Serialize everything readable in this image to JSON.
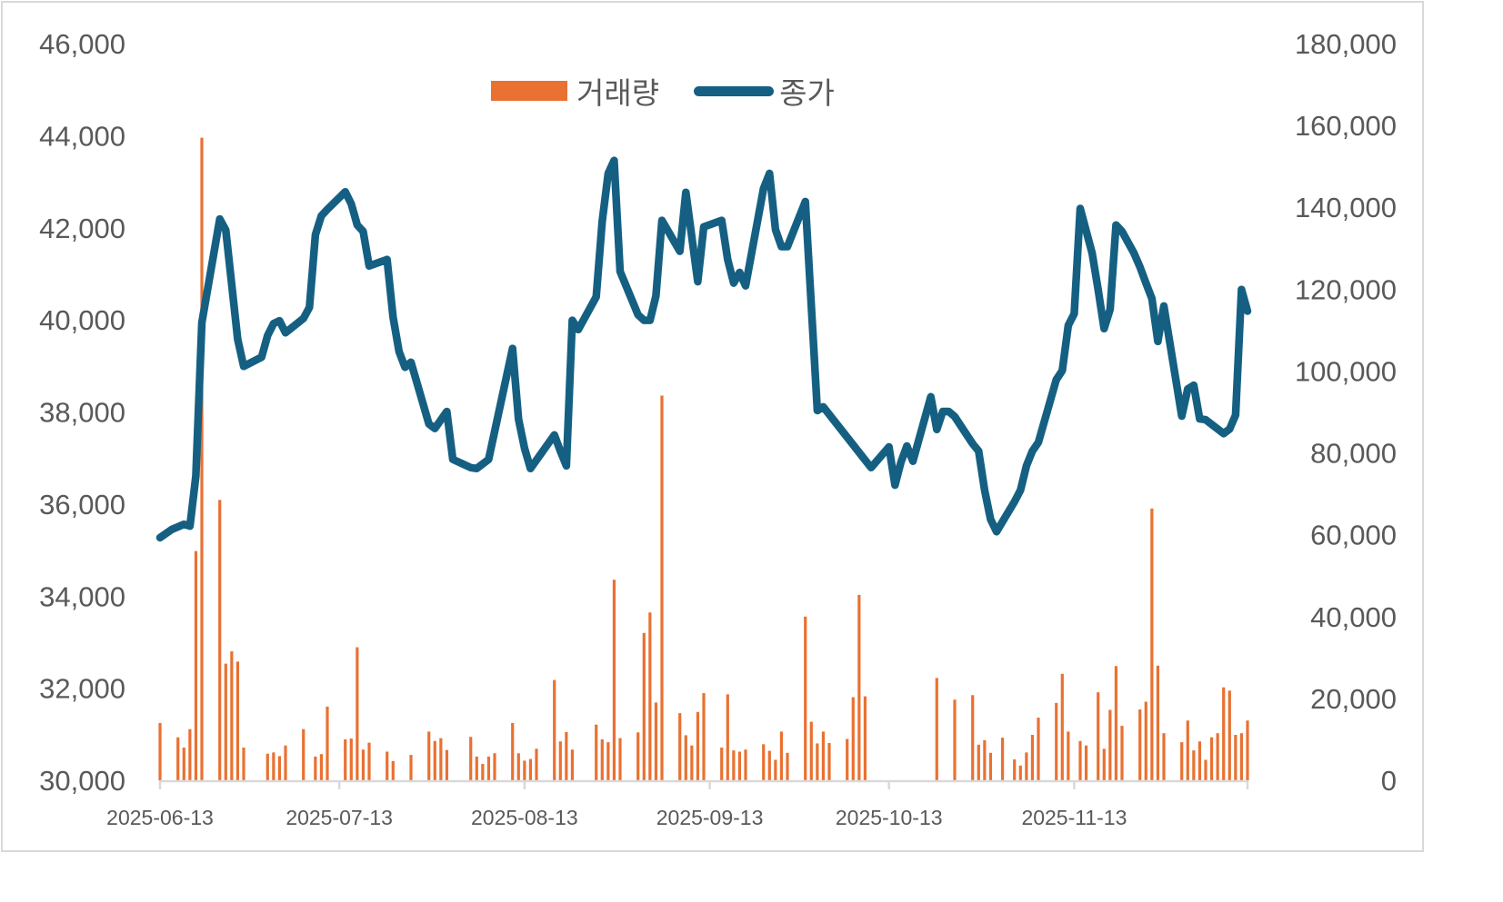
{
  "chart_data": {
    "type": "bar+line",
    "title": "",
    "legend": {
      "position": "top",
      "entries": [
        {
          "label": "거래량",
          "type": "bar",
          "color": "#E97132",
          "axis": "right"
        },
        {
          "label": "종가",
          "type": "line",
          "color": "#156082",
          "axis": "left"
        }
      ]
    },
    "left_axis": {
      "label": "종가",
      "min": 30000,
      "max": 46000,
      "step": 2000,
      "ticks": [
        "30,000",
        "32,000",
        "34,000",
        "36,000",
        "38,000",
        "40,000",
        "42,000",
        "44,000",
        "46,000"
      ]
    },
    "right_axis": {
      "label": "거래량",
      "min": 0,
      "max": 180000,
      "step": 20000,
      "ticks": [
        "0",
        "20,000",
        "40,000",
        "60,000",
        "80,000",
        "100,000",
        "120,000",
        "140,000",
        "160,000",
        "180,000"
      ]
    },
    "x_axis": {
      "start": "2025-06-13",
      "end": "2025-12-12",
      "tick_labels": [
        "2025-06-13",
        "2025-07-13",
        "2025-08-13",
        "2025-09-13",
        "2025-10-13",
        "2025-11-13"
      ]
    },
    "grid": false,
    "close_series": {
      "name": "종가",
      "points": [
        [
          "2025-06-13",
          35270
        ],
        [
          "2025-06-15",
          35450
        ],
        [
          "2025-06-17",
          35560
        ],
        [
          "2025-06-18",
          35520
        ],
        [
          "2025-06-19",
          36610
        ],
        [
          "2025-06-20",
          39940
        ],
        [
          "2025-06-23",
          42190
        ],
        [
          "2025-06-24",
          41950
        ],
        [
          "2025-06-26",
          39580
        ],
        [
          "2025-06-27",
          38990
        ],
        [
          "2025-06-30",
          39190
        ],
        [
          "2025-07-01",
          39660
        ],
        [
          "2025-07-02",
          39920
        ],
        [
          "2025-07-03",
          39980
        ],
        [
          "2025-07-04",
          39720
        ],
        [
          "2025-07-07",
          40030
        ],
        [
          "2025-07-08",
          40270
        ],
        [
          "2025-07-09",
          41850
        ],
        [
          "2025-07-10",
          42260
        ],
        [
          "2025-07-11",
          42400
        ],
        [
          "2025-07-14",
          42780
        ],
        [
          "2025-07-15",
          42520
        ],
        [
          "2025-07-16",
          42060
        ],
        [
          "2025-07-17",
          41920
        ],
        [
          "2025-07-18",
          41170
        ],
        [
          "2025-07-21",
          41310
        ],
        [
          "2025-07-22",
          40060
        ],
        [
          "2025-07-23",
          39310
        ],
        [
          "2025-07-24",
          38970
        ],
        [
          "2025-07-25",
          39080
        ],
        [
          "2025-07-28",
          37740
        ],
        [
          "2025-07-29",
          37640
        ],
        [
          "2025-07-31",
          38010
        ],
        [
          "2025-08-01",
          36970
        ],
        [
          "2025-08-04",
          36790
        ],
        [
          "2025-08-05",
          36770
        ],
        [
          "2025-08-07",
          36970
        ],
        [
          "2025-08-11",
          39380
        ],
        [
          "2025-08-12",
          37840
        ],
        [
          "2025-08-13",
          37210
        ],
        [
          "2025-08-14",
          36770
        ],
        [
          "2025-08-18",
          37500
        ],
        [
          "2025-08-19",
          37150
        ],
        [
          "2025-08-20",
          36830
        ],
        [
          "2025-08-21",
          39990
        ],
        [
          "2025-08-22",
          39790
        ],
        [
          "2025-08-25",
          40500
        ],
        [
          "2025-08-26",
          42140
        ],
        [
          "2025-08-27",
          43180
        ],
        [
          "2025-08-28",
          43460
        ],
        [
          "2025-08-29",
          41050
        ],
        [
          "2025-09-01",
          40110
        ],
        [
          "2025-09-02",
          39990
        ],
        [
          "2025-09-03",
          39990
        ],
        [
          "2025-09-04",
          40520
        ],
        [
          "2025-09-05",
          42160
        ],
        [
          "2025-09-08",
          41490
        ],
        [
          "2025-09-09",
          42770
        ],
        [
          "2025-09-11",
          40830
        ],
        [
          "2025-09-12",
          42020
        ],
        [
          "2025-09-15",
          42160
        ],
        [
          "2025-09-16",
          41310
        ],
        [
          "2025-09-17",
          40800
        ],
        [
          "2025-09-18",
          41030
        ],
        [
          "2025-09-19",
          40740
        ],
        [
          "2025-09-22",
          42850
        ],
        [
          "2025-09-23",
          43180
        ],
        [
          "2025-09-24",
          41960
        ],
        [
          "2025-09-25",
          41590
        ],
        [
          "2025-09-26",
          41590
        ],
        [
          "2025-09-29",
          42570
        ],
        [
          "2025-10-01",
          38030
        ],
        [
          "2025-10-02",
          38110
        ],
        [
          "2025-10-10",
          36790
        ],
        [
          "2025-10-13",
          37240
        ],
        [
          "2025-10-14",
          36410
        ],
        [
          "2025-10-15",
          36910
        ],
        [
          "2025-10-16",
          37260
        ],
        [
          "2025-10-17",
          36930
        ],
        [
          "2025-10-20",
          38330
        ],
        [
          "2025-10-21",
          37620
        ],
        [
          "2025-10-22",
          38010
        ],
        [
          "2025-10-23",
          38010
        ],
        [
          "2025-10-24",
          37900
        ],
        [
          "2025-10-27",
          37310
        ],
        [
          "2025-10-28",
          37150
        ],
        [
          "2025-10-29",
          36300
        ],
        [
          "2025-10-30",
          35670
        ],
        [
          "2025-10-31",
          35400
        ],
        [
          "2025-11-03",
          36050
        ],
        [
          "2025-11-04",
          36300
        ],
        [
          "2025-11-05",
          36830
        ],
        [
          "2025-11-06",
          37150
        ],
        [
          "2025-11-07",
          37340
        ],
        [
          "2025-11-10",
          38700
        ],
        [
          "2025-11-11",
          38900
        ],
        [
          "2025-11-12",
          39880
        ],
        [
          "2025-11-13",
          40130
        ],
        [
          "2025-11-14",
          42420
        ],
        [
          "2025-11-16",
          41450
        ],
        [
          "2025-11-17",
          40660
        ],
        [
          "2025-11-18",
          39810
        ],
        [
          "2025-11-19",
          40230
        ],
        [
          "2025-11-20",
          42060
        ],
        [
          "2025-11-21",
          41920
        ],
        [
          "2025-11-23",
          41450
        ],
        [
          "2025-11-24",
          41150
        ],
        [
          "2025-11-25",
          40800
        ],
        [
          "2025-11-26",
          40460
        ],
        [
          "2025-11-27",
          39530
        ],
        [
          "2025-11-28",
          40300
        ],
        [
          "2025-12-01",
          37910
        ],
        [
          "2025-12-02",
          38500
        ],
        [
          "2025-12-03",
          38580
        ],
        [
          "2025-12-04",
          37850
        ],
        [
          "2025-12-05",
          37830
        ],
        [
          "2025-12-08",
          37530
        ],
        [
          "2025-12-09",
          37630
        ],
        [
          "2025-12-10",
          37930
        ],
        [
          "2025-12-11",
          40660
        ],
        [
          "2025-12-12",
          40190
        ]
      ]
    },
    "volume_series": {
      "name": "거래량",
      "bars": [
        [
          "2025-06-13",
          14000
        ],
        [
          "2025-06-16",
          10500
        ],
        [
          "2025-06-17",
          8000
        ],
        [
          "2025-06-18",
          12500
        ],
        [
          "2025-06-19",
          56000
        ],
        [
          "2025-06-20",
          157000
        ],
        [
          "2025-06-23",
          68500
        ],
        [
          "2025-06-24",
          28500
        ],
        [
          "2025-06-25",
          31500
        ],
        [
          "2025-06-26",
          29000
        ],
        [
          "2025-06-27",
          8000
        ],
        [
          "2025-07-01",
          6500
        ],
        [
          "2025-07-02",
          6800
        ],
        [
          "2025-07-03",
          5900
        ],
        [
          "2025-07-04",
          8500
        ],
        [
          "2025-07-07",
          12500
        ],
        [
          "2025-07-09",
          5800
        ],
        [
          "2025-07-10",
          6400
        ],
        [
          "2025-07-11",
          18000
        ],
        [
          "2025-07-14",
          10000
        ],
        [
          "2025-07-15",
          10200
        ],
        [
          "2025-07-16",
          32500
        ],
        [
          "2025-07-17",
          7500
        ],
        [
          "2025-07-18",
          9200
        ],
        [
          "2025-07-21",
          7000
        ],
        [
          "2025-07-22",
          4700
        ],
        [
          "2025-07-25",
          6200
        ],
        [
          "2025-07-28",
          11900
        ],
        [
          "2025-07-29",
          9600
        ],
        [
          "2025-07-30",
          10300
        ],
        [
          "2025-07-31",
          7400
        ],
        [
          "2025-08-04",
          10600
        ],
        [
          "2025-08-05",
          5800
        ],
        [
          "2025-08-06",
          4000
        ],
        [
          "2025-08-07",
          5800
        ],
        [
          "2025-08-08",
          6600
        ],
        [
          "2025-08-11",
          14000
        ],
        [
          "2025-08-12",
          6600
        ],
        [
          "2025-08-13",
          4800
        ],
        [
          "2025-08-14",
          5200
        ],
        [
          "2025-08-15",
          7700
        ],
        [
          "2025-08-18",
          24500
        ],
        [
          "2025-08-19",
          9500
        ],
        [
          "2025-08-20",
          11800
        ],
        [
          "2025-08-21",
          7500
        ],
        [
          "2025-08-25",
          13600
        ],
        [
          "2025-08-26",
          10000
        ],
        [
          "2025-08-27",
          9300
        ],
        [
          "2025-08-28",
          49000
        ],
        [
          "2025-08-29",
          10300
        ],
        [
          "2025-09-01",
          11700
        ],
        [
          "2025-09-02",
          36000
        ],
        [
          "2025-09-03",
          41000
        ],
        [
          "2025-09-04",
          19000
        ],
        [
          "2025-09-05",
          94000
        ],
        [
          "2025-09-08",
          16400
        ],
        [
          "2025-09-09",
          11000
        ],
        [
          "2025-09-10",
          8500
        ],
        [
          "2025-09-11",
          16700
        ],
        [
          "2025-09-12",
          21300
        ],
        [
          "2025-09-15",
          8000
        ],
        [
          "2025-09-16",
          21000
        ],
        [
          "2025-09-17",
          7300
        ],
        [
          "2025-09-18",
          7000
        ],
        [
          "2025-09-19",
          7500
        ],
        [
          "2025-09-22",
          8800
        ],
        [
          "2025-09-23",
          7200
        ],
        [
          "2025-09-24",
          5000
        ],
        [
          "2025-09-25",
          11900
        ],
        [
          "2025-09-26",
          6700
        ],
        [
          "2025-09-29",
          40000
        ],
        [
          "2025-09-30",
          14300
        ],
        [
          "2025-10-01",
          9000
        ],
        [
          "2025-10-02",
          11900
        ],
        [
          "2025-10-03",
          9100
        ],
        [
          "2025-10-06",
          10100
        ],
        [
          "2025-10-07",
          20300
        ],
        [
          "2025-10-08",
          45300
        ],
        [
          "2025-10-09",
          20500
        ],
        [
          "2025-10-21",
          25000
        ],
        [
          "2025-10-24",
          19700
        ],
        [
          "2025-10-27",
          20800
        ],
        [
          "2025-10-28",
          8700
        ],
        [
          "2025-10-29",
          9800
        ],
        [
          "2025-10-30",
          6700
        ],
        [
          "2025-11-01",
          10400
        ],
        [
          "2025-11-03",
          5100
        ],
        [
          "2025-11-04",
          3600
        ],
        [
          "2025-11-05",
          6800
        ],
        [
          "2025-11-06",
          11100
        ],
        [
          "2025-11-07",
          15300
        ],
        [
          "2025-11-10",
          18900
        ],
        [
          "2025-11-11",
          26000
        ],
        [
          "2025-11-12",
          11900
        ],
        [
          "2025-11-14",
          9600
        ],
        [
          "2025-11-15",
          8500
        ],
        [
          "2025-11-17",
          21500
        ],
        [
          "2025-11-18",
          7700
        ],
        [
          "2025-11-19",
          17200
        ],
        [
          "2025-11-20",
          27900
        ],
        [
          "2025-11-21",
          13300
        ],
        [
          "2025-11-24",
          17300
        ],
        [
          "2025-11-25",
          19200
        ],
        [
          "2025-11-26",
          66400
        ],
        [
          "2025-11-27",
          28000
        ],
        [
          "2025-11-28",
          11500
        ],
        [
          "2025-12-01",
          9300
        ],
        [
          "2025-12-02",
          14600
        ],
        [
          "2025-12-03",
          7300
        ],
        [
          "2025-12-04",
          9500
        ],
        [
          "2025-12-05",
          5000
        ],
        [
          "2025-12-06",
          10500
        ],
        [
          "2025-12-07",
          11500
        ],
        [
          "2025-12-08",
          22700
        ],
        [
          "2025-12-09",
          21900
        ],
        [
          "2025-12-10",
          11100
        ],
        [
          "2025-12-11",
          11500
        ],
        [
          "2025-12-12",
          14600
        ]
      ]
    }
  }
}
